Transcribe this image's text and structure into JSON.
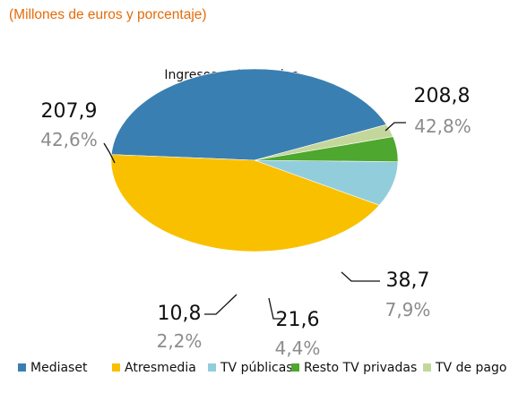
{
  "caption": "(Millones de euros y porcentaje)",
  "colors": {
    "caption": "#e36c0a",
    "Mediaset": "#3a7fb1",
    "Atresmedia": "#f9c000",
    "TV públicas": "#92cddc",
    "Resto TV privadas": "#4ea72e",
    "TV de pago": "#c4d79b"
  },
  "chart_data": {
    "type": "pie",
    "style": "3d",
    "title": "Ingresos publicitarios",
    "legend_position": "bottom",
    "unit": "Millones de euros",
    "slices": [
      {
        "label": "Mediaset",
        "value": 207.9,
        "value_text": "207,9",
        "percent": 42.6,
        "percent_text": "42,6%"
      },
      {
        "label": "Atresmedia",
        "value": 208.8,
        "value_text": "208,8",
        "percent": 42.8,
        "percent_text": "42,8%"
      },
      {
        "label": "TV públicas",
        "value": 38.7,
        "value_text": "38,7",
        "percent": 7.9,
        "percent_text": "7,9%"
      },
      {
        "label": "Resto TV privadas",
        "value": 21.6,
        "value_text": "21,6",
        "percent": 4.4,
        "percent_text": "4,4%"
      },
      {
        "label": "TV de pago",
        "value": 10.8,
        "value_text": "10,8",
        "percent": 2.2,
        "percent_text": "2,2%"
      }
    ]
  }
}
